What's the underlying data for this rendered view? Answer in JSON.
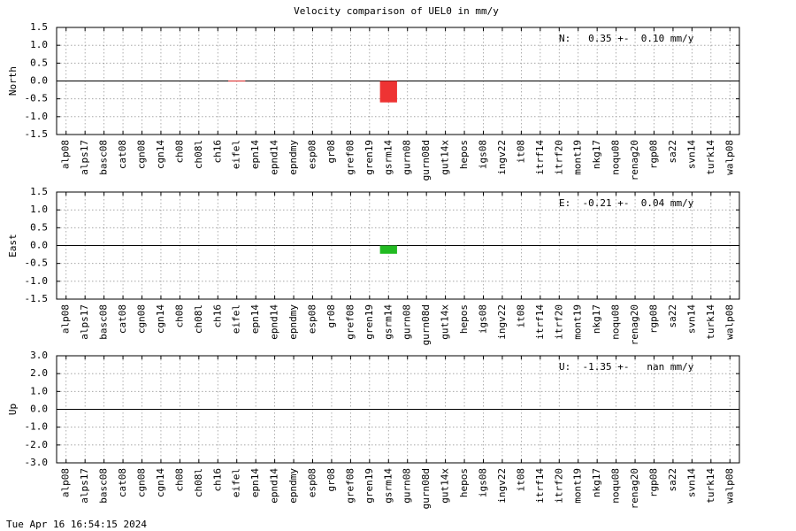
{
  "title": "Velocity comparison of UEL0 in mm/y",
  "timestamp": "Tue Apr 16 16:54:15 2024",
  "chart_data": [
    {
      "type": "bar",
      "ylabel": "North",
      "annotation": "N:   0.35 +-  0.10 mm/y",
      "color": "#ee3333",
      "categories": [
        "alp08",
        "alps17",
        "basc08",
        "cat08",
        "cgn08",
        "cgn14",
        "ch08",
        "ch08l",
        "ch16",
        "eifel",
        "epn14",
        "epnd14",
        "epndmy",
        "esp08",
        "gr08",
        "gref08",
        "gren19",
        "gsrm14",
        "gurn08",
        "gurn08d",
        "gut14x",
        "hepos",
        "igs08",
        "ingv22",
        "it08",
        "itrf14",
        "itrf20",
        "mont19",
        "nkg17",
        "noqu08",
        "renag20",
        "rgp08",
        "sa22",
        "svn14",
        "turk14",
        "walp08"
      ],
      "values": [
        null,
        null,
        null,
        null,
        null,
        null,
        null,
        null,
        null,
        0.01,
        null,
        null,
        null,
        null,
        null,
        null,
        null,
        -0.6,
        null,
        null,
        null,
        null,
        null,
        null,
        null,
        null,
        null,
        null,
        null,
        null,
        null,
        null,
        null,
        null,
        null,
        null
      ],
      "ylim": [
        -1.5,
        1.5
      ],
      "yticks": [
        -1.5,
        {
          "value": -1,
          "label": "-1.0"
        },
        -0.5,
        {
          "value": 0,
          "label": "0.0"
        },
        0.5,
        {
          "value": 1,
          "label": "1.0"
        },
        1.5
      ],
      "grid": true
    },
    {
      "type": "bar",
      "ylabel": "East",
      "annotation": "E:  -0.21 +-  0.04 mm/y",
      "color": "#22bb22",
      "categories": [
        "alp08",
        "alps17",
        "basc08",
        "cat08",
        "cgn08",
        "cgn14",
        "ch08",
        "ch08l",
        "ch16",
        "eifel",
        "epn14",
        "epnd14",
        "epndmy",
        "esp08",
        "gr08",
        "gref08",
        "gren19",
        "gsrm14",
        "gurn08",
        "gurn08d",
        "gut14x",
        "hepos",
        "igs08",
        "ingv22",
        "it08",
        "itrf14",
        "itrf20",
        "mont19",
        "nkg17",
        "noqu08",
        "renag20",
        "rgp08",
        "sa22",
        "svn14",
        "turk14",
        "walp08"
      ],
      "values": [
        null,
        null,
        null,
        null,
        null,
        null,
        null,
        null,
        null,
        null,
        null,
        null,
        null,
        null,
        null,
        null,
        null,
        -0.23,
        null,
        null,
        null,
        null,
        null,
        null,
        null,
        null,
        null,
        null,
        null,
        null,
        null,
        null,
        null,
        null,
        null,
        null
      ],
      "ylim": [
        -1.5,
        1.5
      ],
      "yticks": [
        -1.5,
        {
          "value": -1,
          "label": "-1.0"
        },
        -0.5,
        {
          "value": 0,
          "label": "0.0"
        },
        0.5,
        {
          "value": 1,
          "label": "1.0"
        },
        1.5
      ],
      "grid": true
    },
    {
      "type": "bar",
      "ylabel": "Up",
      "annotation": "U:  -1.35 +-   nan mm/y",
      "categories": [
        "alp08",
        "alps17",
        "basc08",
        "cat08",
        "cgn08",
        "cgn14",
        "ch08",
        "ch08l",
        "ch16",
        "eifel",
        "epn14",
        "epnd14",
        "epndmy",
        "esp08",
        "gr08",
        "gref08",
        "gren19",
        "gsrm14",
        "gurn08",
        "gurn08d",
        "gut14x",
        "hepos",
        "igs08",
        "ingv22",
        "it08",
        "itrf14",
        "itrf20",
        "mont19",
        "nkg17",
        "noqu08",
        "renag20",
        "rgp08",
        "sa22",
        "svn14",
        "turk14",
        "walp08"
      ],
      "values": [
        null,
        null,
        null,
        null,
        null,
        null,
        null,
        null,
        null,
        null,
        null,
        null,
        null,
        null,
        null,
        null,
        null,
        null,
        null,
        null,
        null,
        null,
        null,
        null,
        null,
        null,
        null,
        null,
        null,
        null,
        null,
        null,
        null,
        null,
        null,
        null
      ],
      "ylim": [
        -3,
        3
      ],
      "yticks": [
        {
          "value": -3,
          "label": "-3.0"
        },
        {
          "value": -2,
          "label": "-2.0"
        },
        {
          "value": -1,
          "label": "-1.0"
        },
        {
          "value": 0,
          "label": "0.0"
        },
        {
          "value": 1,
          "label": "1.0"
        },
        {
          "value": 2,
          "label": "2.0"
        },
        {
          "value": 3,
          "label": "3.0"
        }
      ],
      "grid": true
    }
  ]
}
